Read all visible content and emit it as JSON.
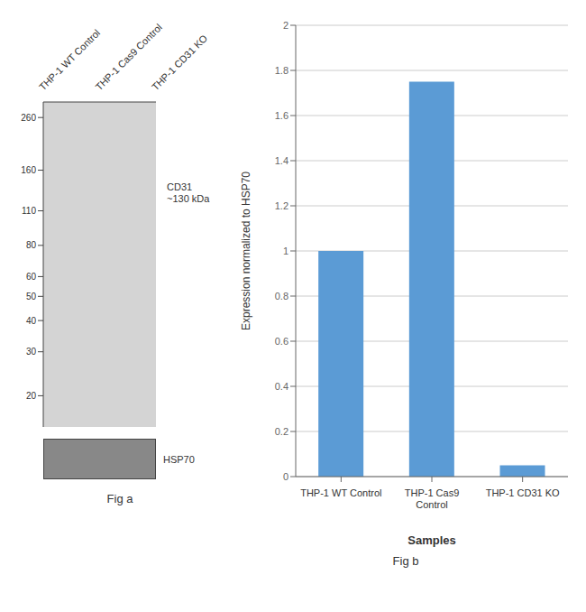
{
  "chart_data": [
    {
      "type": "blot",
      "title": "Fig a",
      "categories": [
        "THP-1 WT Control",
        "THP-1 Cas9 Control",
        "THP-1 CD31 KO"
      ],
      "color": "#d4d4d4",
      "log": "y",
      "ylim": [
        15,
        300
      ],
      "yticks": [
        260,
        160,
        110,
        80,
        60,
        50,
        40,
        30,
        20
      ],
      "annotations": [
        {
          "text": "CD31\n~130 kDa",
          "y": 130
        },
        {
          "text": "HSP70"
        }
      ]
    },
    {
      "type": "bar",
      "title": "Fig b",
      "categories": [
        "THP-1 WT Control",
        "THP-1 Cas9\nControl",
        "THP-1 CD31 KO"
      ],
      "values": [
        1.0,
        1.75,
        0.05
      ],
      "color": "#5b9bd5",
      "xlabel": "Samples",
      "ylabel": "Expression normalized to HSP70",
      "ylim": [
        0,
        2
      ],
      "yticks": [
        0,
        0.2,
        0.4,
        0.6,
        0.8,
        1,
        1.2,
        1.4,
        1.6,
        1.8,
        2
      ],
      "grid": true
    }
  ]
}
